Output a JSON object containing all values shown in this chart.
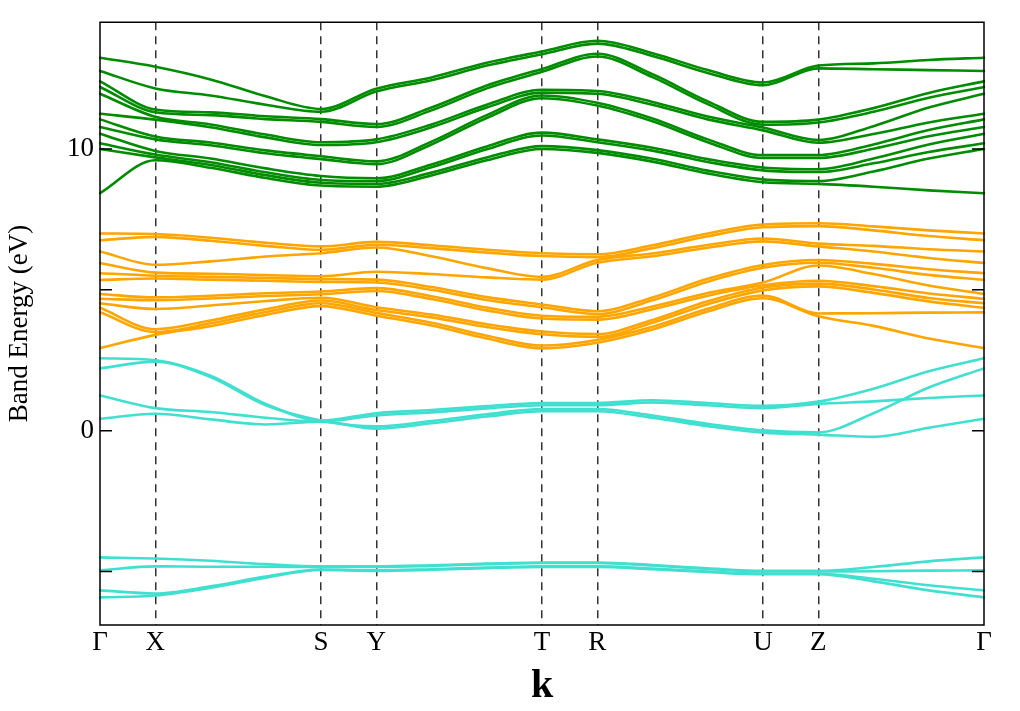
{
  "chart_data": {
    "type": "line",
    "xlabel": "k",
    "ylabel": "Band Energy (eV)",
    "categories": [
      "Γ",
      "X",
      null,
      null,
      "S",
      "Y",
      null,
      null,
      "T",
      "R",
      null,
      null,
      "U",
      "Z",
      null,
      null,
      "Γ"
    ],
    "ylim": [
      -6.9,
      14.5
    ],
    "yticks": [
      {
        "value": -5,
        "label": null
      },
      0,
      {
        "value": 5,
        "label": null
      },
      10
    ],
    "grid": "x",
    "legend": false,
    "marker": "none",
    "line_style": "solid",
    "series": [
      {
        "color": "#40e0d0",
        "values": [
          -5.92,
          -5.85,
          -5.58,
          -5.22,
          -4.95,
          -4.98,
          -4.94,
          -4.88,
          -4.84,
          -4.84,
          -4.92,
          -5.02,
          -5.1,
          -5.1,
          -5.35,
          -5.67,
          -5.92
        ]
      },
      {
        "color": "#40e0d0",
        "values": [
          -5.67,
          -5.78,
          -5.53,
          -5.18,
          -4.93,
          -4.96,
          -4.92,
          -4.86,
          -4.82,
          -4.82,
          -4.9,
          -5.0,
          -5.08,
          -5.08,
          -5.26,
          -5.49,
          -5.67
        ]
      },
      {
        "color": "#40e0d0",
        "values": [
          -4.96,
          -4.82,
          -4.83,
          -4.83,
          -4.84,
          -4.84,
          -4.8,
          -4.74,
          -4.7,
          -4.7,
          -4.79,
          -4.91,
          -5.0,
          -5.0,
          -4.99,
          -4.97,
          -4.96
        ]
      },
      {
        "color": "#40e0d0",
        "values": [
          -4.5,
          -4.54,
          -4.62,
          -4.74,
          -4.82,
          -4.82,
          -4.78,
          -4.72,
          -4.68,
          -4.68,
          -4.77,
          -4.89,
          -4.98,
          -4.98,
          -4.84,
          -4.64,
          -4.5
        ]
      },
      {
        "color": "#40e0d0",
        "values": [
          0.42,
          0.6,
          0.4,
          0.22,
          0.32,
          0.07,
          0.26,
          0.5,
          0.69,
          0.69,
          0.46,
          0.16,
          -0.07,
          -0.14,
          -0.22,
          0.1,
          0.42
        ]
      },
      {
        "color": "#40e0d0",
        "values": [
          1.25,
          0.8,
          0.66,
          0.46,
          0.32,
          0.54,
          0.65,
          0.79,
          0.9,
          0.9,
          1.0,
          0.9,
          0.8,
          0.95,
          1.04,
          1.16,
          1.25
        ]
      },
      {
        "color": "#40e0d0",
        "values": [
          2.21,
          2.45,
          1.9,
          0.9,
          0.36,
          0.15,
          0.34,
          0.58,
          0.77,
          0.77,
          0.54,
          0.24,
          0.01,
          -0.06,
          0.62,
          1.53,
          2.21
        ]
      },
      {
        "color": "#40e0d0",
        "values": [
          2.57,
          2.5,
          1.95,
          0.95,
          0.36,
          0.62,
          0.73,
          0.87,
          0.98,
          0.98,
          1.08,
          0.98,
          0.88,
          1.03,
          1.49,
          2.11,
          2.57
        ]
      },
      {
        "color": "#ffa500",
        "values": [
          2.93,
          3.4,
          3.71,
          4.11,
          4.42,
          4.08,
          3.73,
          3.27,
          2.92,
          3.12,
          3.59,
          4.23,
          4.7,
          4.06,
          3.72,
          3.27,
          2.93
        ]
      },
      {
        "color": "#ffa500",
        "values": [
          4.2,
          3.5,
          3.81,
          4.21,
          4.52,
          4.18,
          3.83,
          3.37,
          3.02,
          3.22,
          3.69,
          4.33,
          4.8,
          4.16,
          4.17,
          4.19,
          4.2
        ]
      },
      {
        "color": "#ffa500",
        "values": [
          4.36,
          3.6,
          3.91,
          4.31,
          4.62,
          4.28,
          4.02,
          3.68,
          3.42,
          3.33,
          3.83,
          4.49,
          4.98,
          5.12,
          4.89,
          4.59,
          4.36
        ]
      },
      {
        "color": "#ffa500",
        "values": [
          4.52,
          4.32,
          4.44,
          4.6,
          4.72,
          4.38,
          4.12,
          3.78,
          3.52,
          3.43,
          3.93,
          4.59,
          5.08,
          5.22,
          5.01,
          4.71,
          4.52
        ]
      },
      {
        "color": "#ffa500",
        "values": [
          4.68,
          4.63,
          4.69,
          4.78,
          4.84,
          4.96,
          4.67,
          4.27,
          3.98,
          3.94,
          4.31,
          4.79,
          5.16,
          5.32,
          5.13,
          4.87,
          4.68
        ]
      },
      {
        "color": "#ffa500",
        "values": [
          4.85,
          4.73,
          4.79,
          4.88,
          4.94,
          5.06,
          4.77,
          4.37,
          4.08,
          4.04,
          4.41,
          4.89,
          5.26,
          5.86,
          5.56,
          5.15,
          4.85
        ]
      },
      {
        "color": "#ffa500",
        "values": [
          5.35,
          5.4,
          5.36,
          5.32,
          5.28,
          5.26,
          5.0,
          4.64,
          4.38,
          4.14,
          4.63,
          5.29,
          5.78,
          5.96,
          5.78,
          5.53,
          5.35
        ]
      },
      {
        "color": "#ffa500",
        "values": [
          5.59,
          5.5,
          5.46,
          5.42,
          5.38,
          5.36,
          5.1,
          4.74,
          4.48,
          4.24,
          4.73,
          5.39,
          5.88,
          6.06,
          5.92,
          5.73,
          5.59
        ]
      },
      {
        "color": "#ffa500",
        "values": [
          5.95,
          5.61,
          5.57,
          5.52,
          5.48,
          5.64,
          5.56,
          5.44,
          5.36,
          5.96,
          6.19,
          6.49,
          6.72,
          6.54,
          6.36,
          6.13,
          5.95
        ]
      },
      {
        "color": "#ffa500",
        "values": [
          6.36,
          5.89,
          6.01,
          6.18,
          6.3,
          6.5,
          6.19,
          5.77,
          5.46,
          6.06,
          6.29,
          6.59,
          6.82,
          6.64,
          6.56,
          6.44,
          6.36
        ]
      },
      {
        "color": "#ffa500",
        "values": [
          6.76,
          6.88,
          6.74,
          6.56,
          6.42,
          6.6,
          6.48,
          6.32,
          6.2,
          6.16,
          6.48,
          6.9,
          7.22,
          7.26,
          7.11,
          6.91,
          6.76
        ]
      },
      {
        "color": "#ffa500",
        "values": [
          7.0,
          6.98,
          6.85,
          6.67,
          6.54,
          6.7,
          6.58,
          6.42,
          6.3,
          6.26,
          6.58,
          7.0,
          7.32,
          7.36,
          7.25,
          7.11,
          7.0
        ]
      },
      {
        "color": "#008c00",
        "values": [
          8.43,
          9.6,
          9.33,
          8.97,
          8.7,
          8.66,
          9.06,
          9.6,
          10.0,
          9.86,
          9.55,
          9.13,
          8.82,
          8.76,
          8.66,
          8.53,
          8.43
        ]
      },
      {
        "color": "#008c00",
        "values": [
          10.0,
          9.7,
          9.43,
          9.07,
          8.8,
          8.76,
          9.16,
          9.7,
          10.1,
          9.96,
          9.65,
          9.23,
          8.92,
          8.86,
          9.2,
          9.66,
          10.0
        ]
      },
      {
        "color": "#008c00",
        "values": [
          10.2,
          9.8,
          9.53,
          9.17,
          8.9,
          8.86,
          9.35,
          9.99,
          10.48,
          10.24,
          9.94,
          9.54,
          9.24,
          9.18,
          9.49,
          9.89,
          10.2
        ]
      },
      {
        "color": "#008c00",
        "values": [
          10.54,
          9.93,
          9.66,
          9.31,
          9.04,
          8.96,
          9.45,
          10.09,
          10.58,
          10.34,
          10.04,
          9.64,
          9.34,
          9.28,
          9.66,
          10.16,
          10.54
        ]
      },
      {
        "color": "#008c00",
        "values": [
          10.78,
          10.34,
          10.13,
          9.85,
          9.64,
          9.46,
          10.16,
          11.1,
          11.8,
          11.54,
          10.98,
          10.24,
          9.68,
          9.68,
          10.01,
          10.45,
          10.78
        ]
      },
      {
        "color": "#008c00",
        "values": [
          11.05,
          10.44,
          10.23,
          9.95,
          9.74,
          9.56,
          10.26,
          11.2,
          11.9,
          11.64,
          11.08,
          10.34,
          9.78,
          9.78,
          10.16,
          10.67,
          11.05
        ]
      },
      {
        "color": "#008c00",
        "values": [
          11.25,
          11.04,
          10.77,
          10.41,
          10.14,
          10.24,
          10.77,
          11.47,
          12.0,
          11.96,
          11.57,
          11.05,
          10.66,
          10.22,
          10.53,
          10.94,
          11.25
        ]
      },
      {
        "color": "#008c00",
        "values": [
          11.96,
          11.14,
          10.87,
          10.51,
          10.24,
          10.34,
          10.87,
          11.57,
          12.1,
          12.06,
          11.67,
          11.15,
          10.76,
          10.32,
          10.81,
          11.47,
          11.96
        ]
      },
      {
        "color": "#008c00",
        "values": [
          12.2,
          11.3,
          11.2,
          11.06,
          10.96,
          10.78,
          11.37,
          12.15,
          12.74,
          13.28,
          12.55,
          11.59,
          10.86,
          10.94,
          11.32,
          11.82,
          12.2
        ]
      },
      {
        "color": "#008c00",
        "values": [
          12.4,
          11.4,
          11.3,
          11.16,
          11.06,
          10.88,
          11.47,
          12.25,
          12.84,
          13.38,
          12.65,
          11.69,
          10.96,
          11.04,
          11.45,
          11.99,
          12.4
        ]
      },
      {
        "color": "#008c00",
        "values": [
          12.77,
          12.15,
          11.9,
          11.57,
          11.32,
          12.04,
          12.44,
          12.96,
          13.36,
          13.74,
          13.3,
          12.7,
          12.26,
          12.86,
          12.83,
          12.8,
          12.77
        ]
      },
      {
        "color": "#008c00",
        "values": [
          13.24,
          12.92,
          12.47,
          11.87,
          11.42,
          12.14,
          12.54,
          13.06,
          13.46,
          13.84,
          13.4,
          12.8,
          12.36,
          12.96,
          13.04,
          13.16,
          13.24
        ]
      }
    ]
  }
}
